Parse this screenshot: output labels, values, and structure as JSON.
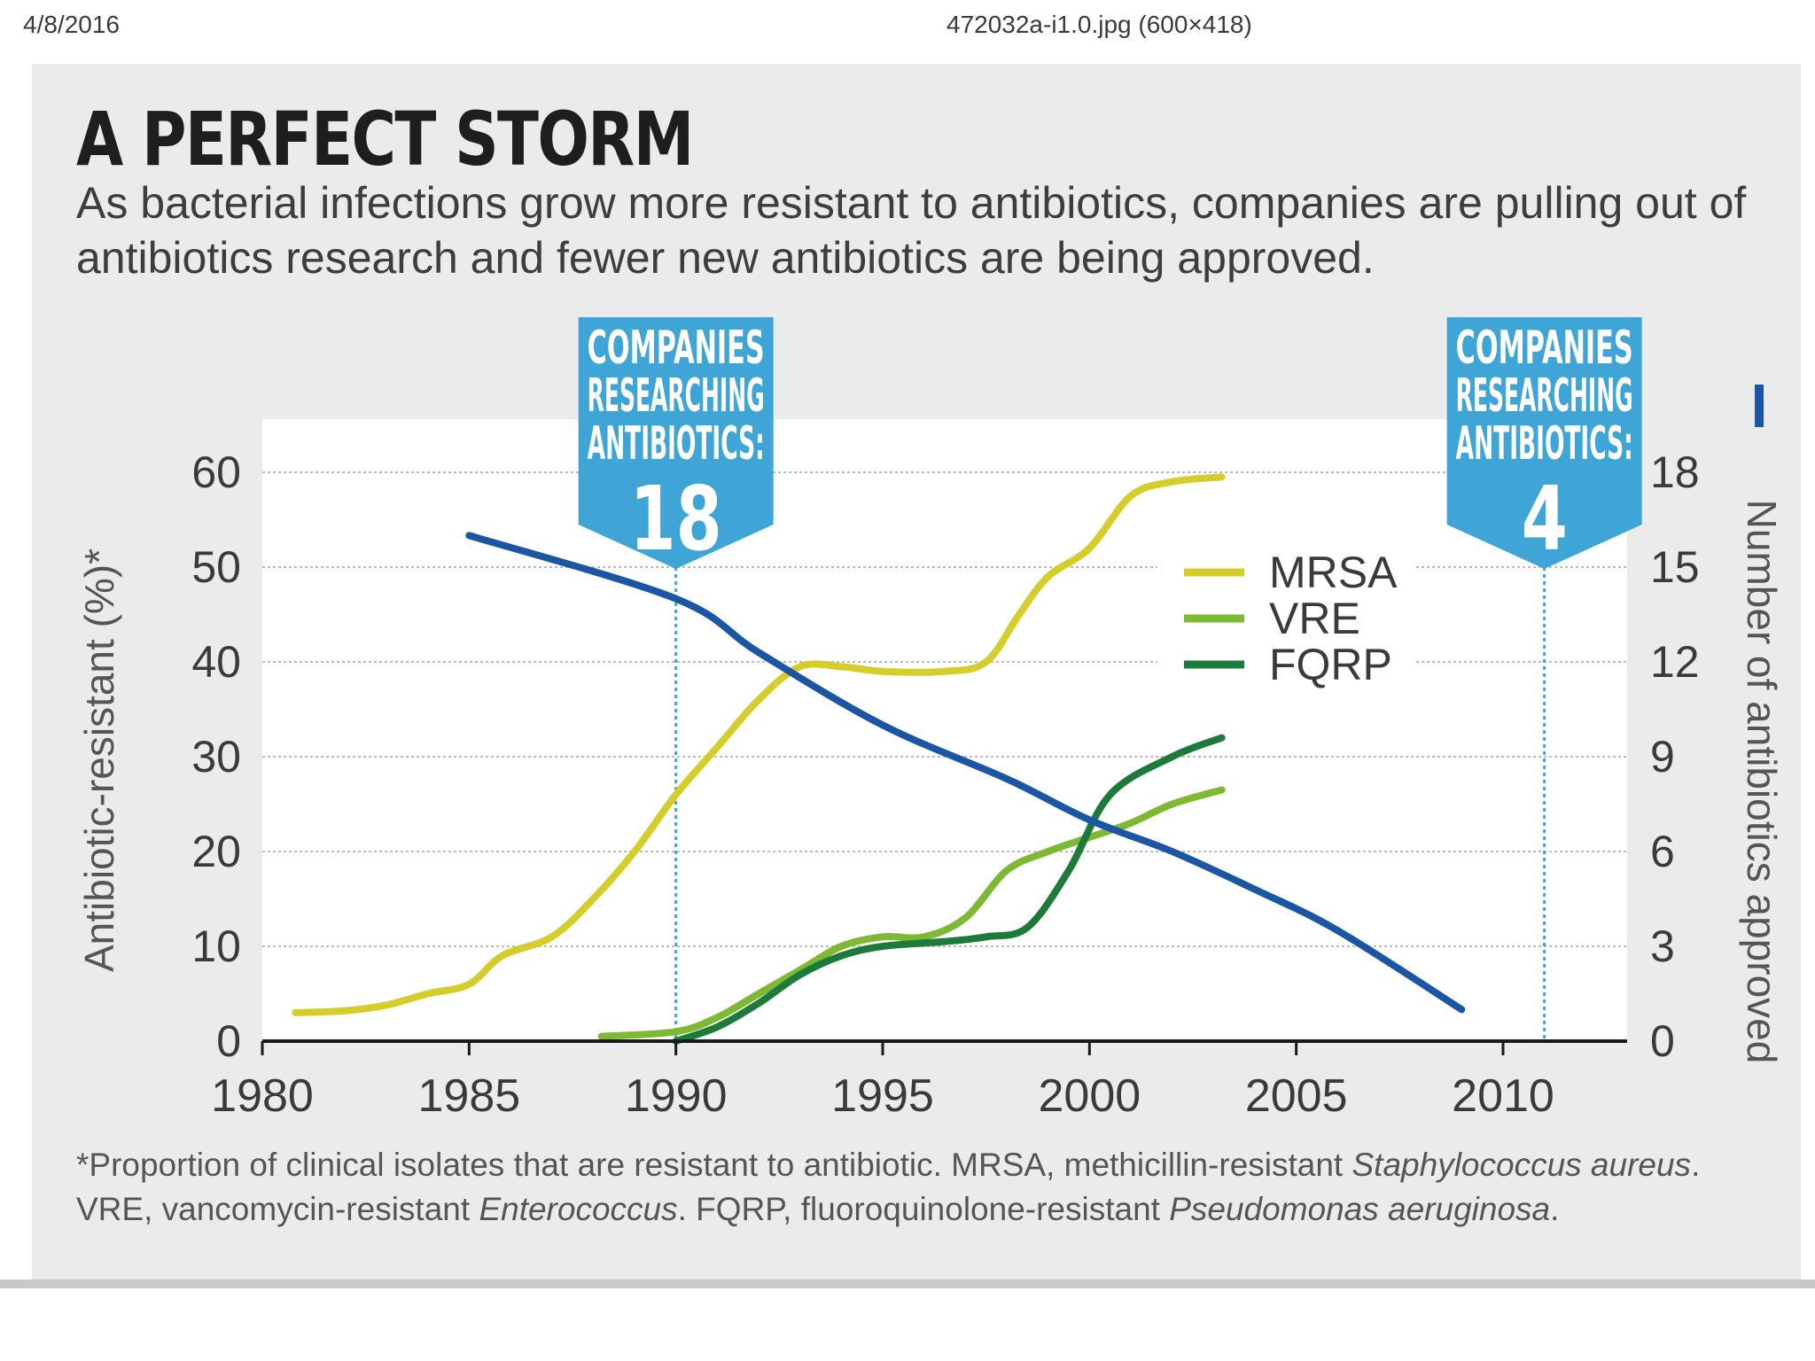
{
  "header": {
    "date": "4/8/2016",
    "file": "472032a-i1.0.jpg (600×418)"
  },
  "title": "A PERFECT STORM",
  "subtitle": "As bacterial infections grow more resistant to antibiotics, companies are pulling out of antibiotics research and fewer new antibiotics are being approved.",
  "callouts": [
    {
      "text": "COMPANIES RESEARCHING ANTIBIOTICS:",
      "value": "18",
      "year": 1990
    },
    {
      "text": "COMPANIES RESEARCHING ANTIBIOTICS:",
      "value": "4",
      "year": 2011
    }
  ],
  "footnote": {
    "p1": "*Proportion of clinical isolates that are resistant to antibiotic. MRSA, methicillin-resistant ",
    "i1": "Staphylococcus aureus",
    "p2": ". VRE, vancomycin-resistant ",
    "i2": "Enterococcus",
    "p3": ". FQRP, fluoroquinolone-resistant ",
    "i3": "Pseudomonas aeruginosa",
    "p4": "."
  },
  "colors": {
    "mrsa": "#d4cd2a",
    "vre": "#7db932",
    "fqrp": "#1c7a3a",
    "approved": "#1a56a3",
    "callout": "#3fa4d6",
    "axis": "#1a1a1a",
    "grid": "#bbbbbb"
  },
  "chart_data": {
    "type": "line",
    "xlim": [
      1980,
      2013
    ],
    "x_ticks": [
      1980,
      1985,
      1990,
      1995,
      2000,
      2005,
      2010
    ],
    "y_left": {
      "label": "Antibiotic-resistant (%)*",
      "ylim": [
        0,
        60
      ],
      "ticks": [
        0,
        10,
        20,
        30,
        40,
        50,
        60
      ]
    },
    "y_right": {
      "label": "Number of antibiotics approved",
      "ylim": [
        0,
        18
      ],
      "ticks": [
        0,
        3,
        6,
        9,
        12,
        15,
        18
      ]
    },
    "grid": true,
    "legend_position": "upper-right",
    "series": [
      {
        "name": "MRSA",
        "axis": "left",
        "color_key": "mrsa",
        "points": [
          [
            1980.8,
            3
          ],
          [
            1982,
            3.2
          ],
          [
            1983,
            3.8
          ],
          [
            1984,
            5
          ],
          [
            1985,
            6
          ],
          [
            1985.8,
            9
          ],
          [
            1987,
            11
          ],
          [
            1988,
            15
          ],
          [
            1989,
            20
          ],
          [
            1990,
            26
          ],
          [
            1991,
            31
          ],
          [
            1992,
            36
          ],
          [
            1993,
            39.5
          ],
          [
            1994,
            39.5
          ],
          [
            1995,
            39
          ],
          [
            1996.5,
            39
          ],
          [
            1997.5,
            40
          ],
          [
            1998.3,
            45
          ],
          [
            1999,
            49
          ],
          [
            2000,
            52
          ],
          [
            2001,
            57.5
          ],
          [
            2002,
            59
          ],
          [
            2003.2,
            59.5
          ]
        ]
      },
      {
        "name": "VRE",
        "axis": "left",
        "color_key": "vre",
        "points": [
          [
            1988.2,
            0.5
          ],
          [
            1990,
            1
          ],
          [
            1991,
            2.5
          ],
          [
            1992,
            5
          ],
          [
            1993,
            7.5
          ],
          [
            1994,
            10
          ],
          [
            1995,
            11
          ],
          [
            1996,
            11
          ],
          [
            1997,
            13
          ],
          [
            1998,
            18
          ],
          [
            1999,
            20
          ],
          [
            2000,
            21.5
          ],
          [
            2001,
            23
          ],
          [
            2002,
            25
          ],
          [
            2003.2,
            26.5
          ]
        ]
      },
      {
        "name": "FQRP",
        "axis": "left",
        "color_key": "fqrp",
        "points": [
          [
            1990,
            0
          ],
          [
            1991,
            1.5
          ],
          [
            1992,
            4
          ],
          [
            1993,
            7
          ],
          [
            1994,
            9
          ],
          [
            1995,
            10
          ],
          [
            1996.5,
            10.5
          ],
          [
            1997.5,
            11
          ],
          [
            1998.5,
            12
          ],
          [
            1999.5,
            18
          ],
          [
            2000.5,
            26
          ],
          [
            2002,
            30
          ],
          [
            2003.2,
            32
          ]
        ]
      },
      {
        "name": "Number of antibiotics approved",
        "axis": "right",
        "color_key": "approved",
        "points": [
          [
            1985,
            16
          ],
          [
            1990,
            14
          ],
          [
            1992,
            12.3
          ],
          [
            1995,
            10
          ],
          [
            1998,
            8.3
          ],
          [
            2000,
            7
          ],
          [
            2002,
            6
          ],
          [
            2004,
            4.8
          ],
          [
            2006,
            3.5
          ],
          [
            2009,
            1
          ]
        ]
      }
    ]
  }
}
